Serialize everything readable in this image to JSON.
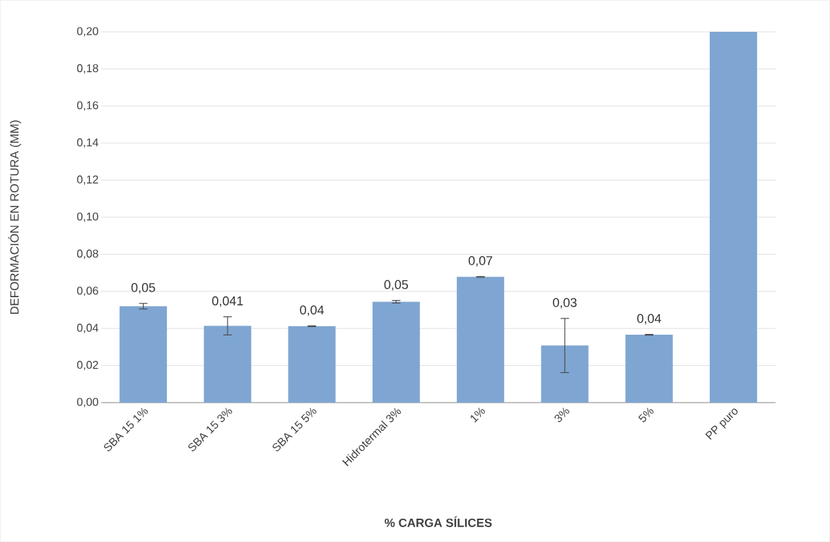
{
  "chart_data": {
    "type": "bar",
    "xlabel": "% CARGA SÍLICES",
    "ylabel": "DEFORMACIÓN EN ROTURA (MM)",
    "categories": [
      "SBA 15 1%",
      "SBA 15 3%",
      "SBA 15 5%",
      "Hidrotermal 3%",
      "1%",
      "3%",
      "5%",
      "PP puro"
    ],
    "values": [
      0.052,
      0.0414,
      0.0412,
      0.0544,
      0.0678,
      0.0308,
      0.0366,
      0.2
    ],
    "errors": [
      0.0015,
      0.0049,
      0.0002,
      0.0007,
      0.0002,
      0.0146,
      0.0002,
      null
    ],
    "value_labels": [
      "0,05",
      "0,041",
      "0,04",
      "0,05",
      "0,07",
      "0,03",
      "0,04",
      null
    ],
    "color": "#7fa6d2",
    "ylim": [
      0,
      0.2
    ],
    "yticks": [
      {
        "value": 0,
        "label": "0,00"
      },
      {
        "value": 0.02,
        "label": "0,02"
      },
      {
        "value": 0.04,
        "label": "0,04"
      },
      {
        "value": 0.06,
        "label": "0,06"
      },
      {
        "value": 0.08,
        "label": "0,08"
      },
      {
        "value": 0.1,
        "label": "0,10"
      },
      {
        "value": 0.12,
        "label": "0,12"
      },
      {
        "value": 0.14,
        "label": "0,14"
      },
      {
        "value": 0.16,
        "label": "0,16"
      },
      {
        "value": 0.18,
        "label": "0,18"
      },
      {
        "value": 0.2,
        "label": "0,20"
      }
    ],
    "grid": "y"
  }
}
